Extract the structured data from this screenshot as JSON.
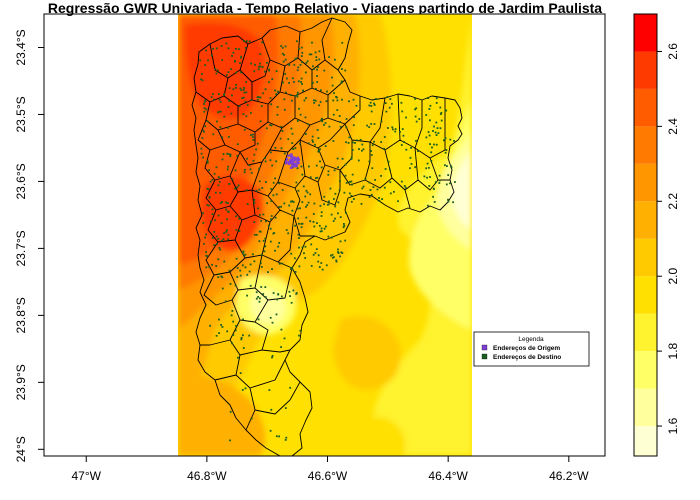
{
  "title": "Regressão GWR Univariada - Tempo Relativo - Viagens partindo de Jardim Paulista",
  "x_axis": {
    "ticks": [
      "47°W",
      "46.8°W",
      "46.6°W",
      "46.4°W",
      "46.2°W"
    ],
    "values": [
      -47.0,
      -46.8,
      -46.6,
      -46.4,
      -46.2
    ],
    "range": [
      -47.07,
      -46.14
    ]
  },
  "y_axis": {
    "ticks": [
      "23.4°S",
      "23.5°S",
      "23.6°S",
      "23.7°S",
      "23.8°S",
      "23.9°S",
      "24°S"
    ],
    "values": [
      -23.4,
      -23.5,
      -23.6,
      -23.7,
      -23.8,
      -23.9,
      -24.0
    ],
    "range": [
      -24.01,
      -23.35
    ]
  },
  "raster_extent": {
    "lon": [
      -46.83,
      -46.35
    ],
    "lat": [
      -24.01,
      -23.35
    ]
  },
  "colorbar": {
    "ticks": [
      "1.6",
      "1.8",
      "2.0",
      "2.2",
      "2.4",
      "2.6"
    ],
    "tick_values": [
      1.6,
      1.8,
      2.0,
      2.2,
      2.4,
      2.6
    ],
    "range": [
      1.52,
      2.7
    ],
    "bands": [
      {
        "from": 1.52,
        "to": 1.6,
        "color": "#FFFFD4"
      },
      {
        "from": 1.6,
        "to": 1.7,
        "color": "#FFFF9E"
      },
      {
        "from": 1.7,
        "to": 1.8,
        "color": "#FFFF66"
      },
      {
        "from": 1.8,
        "to": 1.9,
        "color": "#FFF22E"
      },
      {
        "from": 1.9,
        "to": 2.0,
        "color": "#FFE000"
      },
      {
        "from": 2.0,
        "to": 2.1,
        "color": "#FFCA00"
      },
      {
        "from": 2.1,
        "to": 2.2,
        "color": "#FFB000"
      },
      {
        "from": 2.2,
        "to": 2.3,
        "color": "#FF9600"
      },
      {
        "from": 2.3,
        "to": 2.4,
        "color": "#FF7A00"
      },
      {
        "from": 2.4,
        "to": 2.5,
        "color": "#FF5C00"
      },
      {
        "from": 2.5,
        "to": 2.6,
        "color": "#FF3A00"
      },
      {
        "from": 2.6,
        "to": 2.7,
        "color": "#FF0000"
      }
    ]
  },
  "legend": {
    "title": "Legenda",
    "items": [
      {
        "label": "Endereços de Origem",
        "color": "#7F3FD4"
      },
      {
        "label": "Endereços de Destino",
        "color": "#1A5E20"
      }
    ]
  },
  "origin_point": {
    "lon": -46.66,
    "lat": -23.568
  },
  "colors": {
    "boundary": "#000000",
    "frame": "#000000",
    "background": "#FFFFFF"
  }
}
